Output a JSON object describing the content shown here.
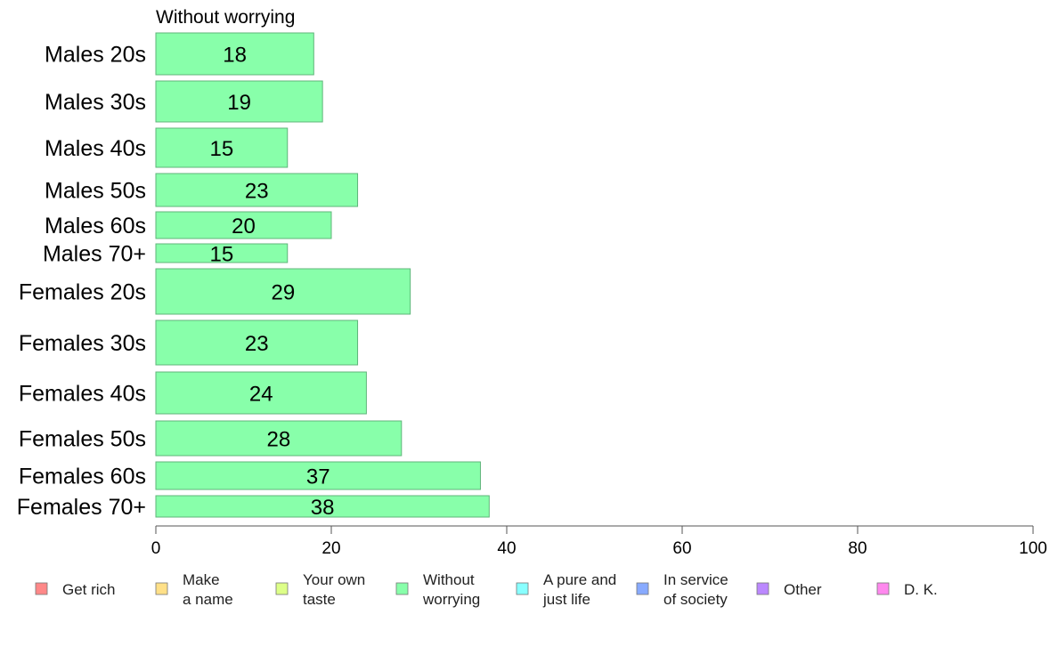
{
  "chart_data": {
    "type": "bar",
    "orientation": "horizontal",
    "title": "Without worrying",
    "categories": [
      "Males 20s",
      "Males 30s",
      "Males 40s",
      "Males 50s",
      "Males 60s",
      "Males 70+",
      "Females 20s",
      "Females 30s",
      "Females 40s",
      "Females 50s",
      "Females 60s",
      "Females 70+"
    ],
    "values": [
      18,
      19,
      15,
      23,
      20,
      15,
      29,
      23,
      24,
      28,
      37,
      38
    ],
    "xlim": [
      0,
      100
    ],
    "xticks": [
      0,
      20,
      40,
      60,
      80,
      100
    ],
    "xlabel": "",
    "ylabel": "",
    "grid": false,
    "bar_color": "#88FFAA",
    "legend_position": "bottom",
    "legend": [
      {
        "lines": [
          "Get rich"
        ],
        "color": "#FF8888"
      },
      {
        "lines": [
          "Make",
          "a name"
        ],
        "color": "#FFE088"
      },
      {
        "lines": [
          "Your own",
          "taste"
        ],
        "color": "#DDFF88"
      },
      {
        "lines": [
          "Without",
          "worrying"
        ],
        "color": "#88FFAA"
      },
      {
        "lines": [
          "A pure and",
          "just life"
        ],
        "color": "#88FFFF"
      },
      {
        "lines": [
          "In service",
          "of society"
        ],
        "color": "#88AAFF"
      },
      {
        "lines": [
          "Other"
        ],
        "color": "#BB88FF"
      },
      {
        "lines": [
          "D. K."
        ],
        "color": "#FF88EE"
      }
    ]
  }
}
